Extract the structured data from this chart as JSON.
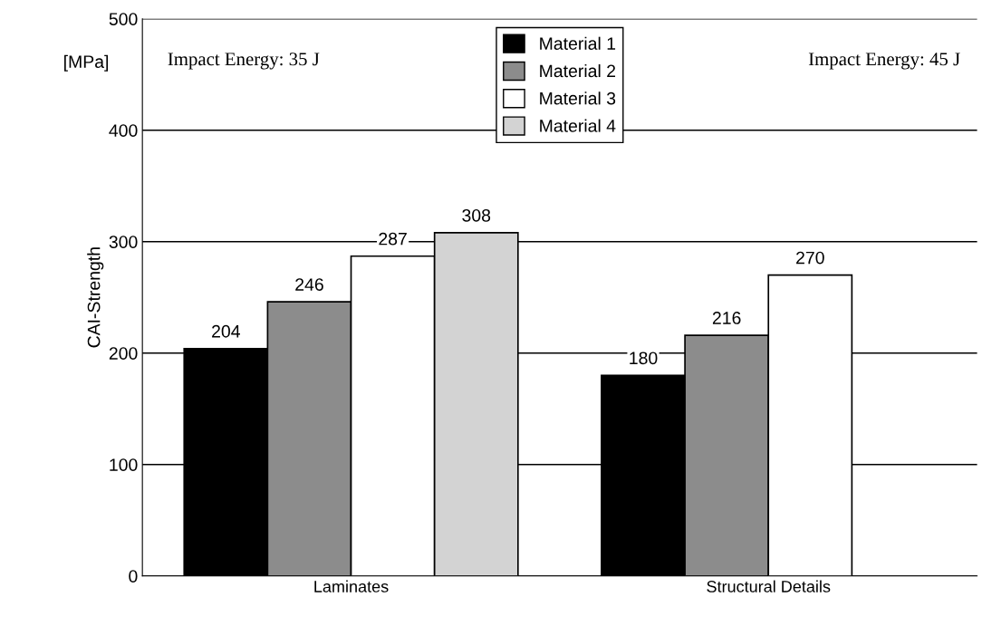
{
  "chart_data": {
    "type": "bar",
    "categories": [
      "Laminates",
      "Structural Details"
    ],
    "series": [
      {
        "name": "Material 1",
        "color": "#000000",
        "values": [
          204,
          180
        ]
      },
      {
        "name": "Material 2",
        "color": "#8c8c8c",
        "values": [
          246,
          216
        ]
      },
      {
        "name": "Material 3",
        "color": "#ffffff",
        "values": [
          287,
          270
        ]
      },
      {
        "name": "Material 4",
        "color": "#d3d3d3",
        "values": [
          308,
          null
        ]
      }
    ],
    "ylabel": "CAI-Strength",
    "ylim": [
      0,
      500
    ],
    "yticks": [
      0,
      100,
      200,
      300,
      400,
      500
    ],
    "annotations": [
      "[MPa]",
      "Impact Energy: 35 J",
      "Impact Energy: 45 J"
    ],
    "data_labels": true,
    "grid": "y",
    "legend": "top"
  }
}
